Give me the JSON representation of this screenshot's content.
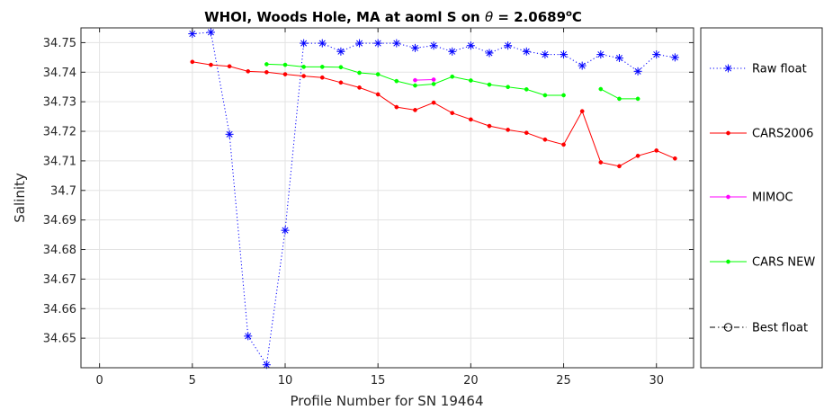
{
  "chart_data": {
    "type": "line",
    "title_main": "WHOI, Woods Hole, MA at aoml S on ",
    "title_theta": "θ",
    "title_value": " = 2.0689",
    "title_deg": "o",
    "title_unit": "C",
    "xlabel": "Profile Number for SN 19464",
    "ylabel": "Salinity",
    "xlim": [
      -1,
      32
    ],
    "ylim": [
      34.64,
      34.755
    ],
    "xticks": [
      0,
      5,
      10,
      15,
      20,
      25,
      30
    ],
    "yticks": [
      34.65,
      34.66,
      34.67,
      34.68,
      34.69,
      34.7,
      34.71,
      34.72,
      34.73,
      34.74,
      34.75
    ],
    "ytick_labels": [
      "34.65",
      "34.66",
      "34.67",
      "34.68",
      "34.69",
      "34.7",
      "34.71",
      "34.72",
      "34.73",
      "34.74",
      "34.75"
    ],
    "grid": true,
    "legend_position": "right",
    "series": [
      {
        "name": "Raw float",
        "color": "#0000ff",
        "style": "dotted",
        "marker": "asterisk",
        "x": [
          5,
          6,
          7,
          8,
          9,
          10,
          11,
          12,
          13,
          14,
          15,
          16,
          17,
          18,
          19,
          20,
          21,
          22,
          23,
          24,
          25,
          26,
          27,
          28,
          29,
          30,
          31
        ],
        "y": [
          34.753,
          34.7535,
          34.719,
          34.6507,
          34.641,
          34.6865,
          34.7498,
          34.7498,
          34.747,
          34.7498,
          34.7498,
          34.7498,
          34.7482,
          34.749,
          34.747,
          34.749,
          34.7465,
          34.749,
          34.747,
          34.746,
          34.746,
          34.7422,
          34.746,
          34.7448,
          34.7403,
          34.746,
          34.745
        ]
      },
      {
        "name": "CARS2006",
        "color": "#ff0000",
        "style": "solid",
        "marker": "dot",
        "segments": [
          {
            "x": [
              5,
              6,
              7,
              8,
              9,
              10,
              11,
              12,
              13,
              14,
              15,
              16,
              17,
              18,
              19,
              20,
              21,
              22,
              23,
              24,
              25,
              26,
              27,
              28,
              29,
              30,
              31
            ],
            "y": [
              34.7435,
              34.7425,
              34.742,
              34.7403,
              34.74,
              34.7393,
              34.7387,
              34.7382,
              34.7365,
              34.7348,
              34.7325,
              34.7282,
              34.7272,
              34.7297,
              34.7262,
              34.724,
              34.7218,
              34.7205,
              34.7195,
              34.7172,
              34.7155,
              34.7268,
              34.7095,
              34.7082,
              34.7117,
              34.7135,
              34.7108
            ]
          }
        ]
      },
      {
        "name": "MIMOC",
        "color": "#ff00ff",
        "style": "solid",
        "marker": "dot",
        "segments": [
          {
            "x": [
              17,
              18
            ],
            "y": [
              34.7373,
              34.7375
            ]
          }
        ]
      },
      {
        "name": "CARS NEW",
        "color": "#00ff00",
        "style": "solid",
        "marker": "dot",
        "segments": [
          {
            "x": [
              9,
              10,
              11,
              12,
              13,
              14,
              15,
              16,
              17,
              18,
              19,
              20,
              21,
              22,
              23,
              24,
              25
            ],
            "y": [
              34.7427,
              34.7425,
              34.7418,
              34.7418,
              34.7417,
              34.7398,
              34.7393,
              34.737,
              34.7355,
              34.736,
              34.7385,
              34.7372,
              34.7358,
              34.735,
              34.7342,
              34.7322,
              34.7322
            ]
          },
          {
            "x": [
              27,
              28,
              29
            ],
            "y": [
              34.7343,
              34.731,
              34.731
            ]
          }
        ]
      },
      {
        "name": "Best float",
        "color": "#000000",
        "style": "dashdot",
        "marker": "circle",
        "segments": []
      }
    ]
  }
}
